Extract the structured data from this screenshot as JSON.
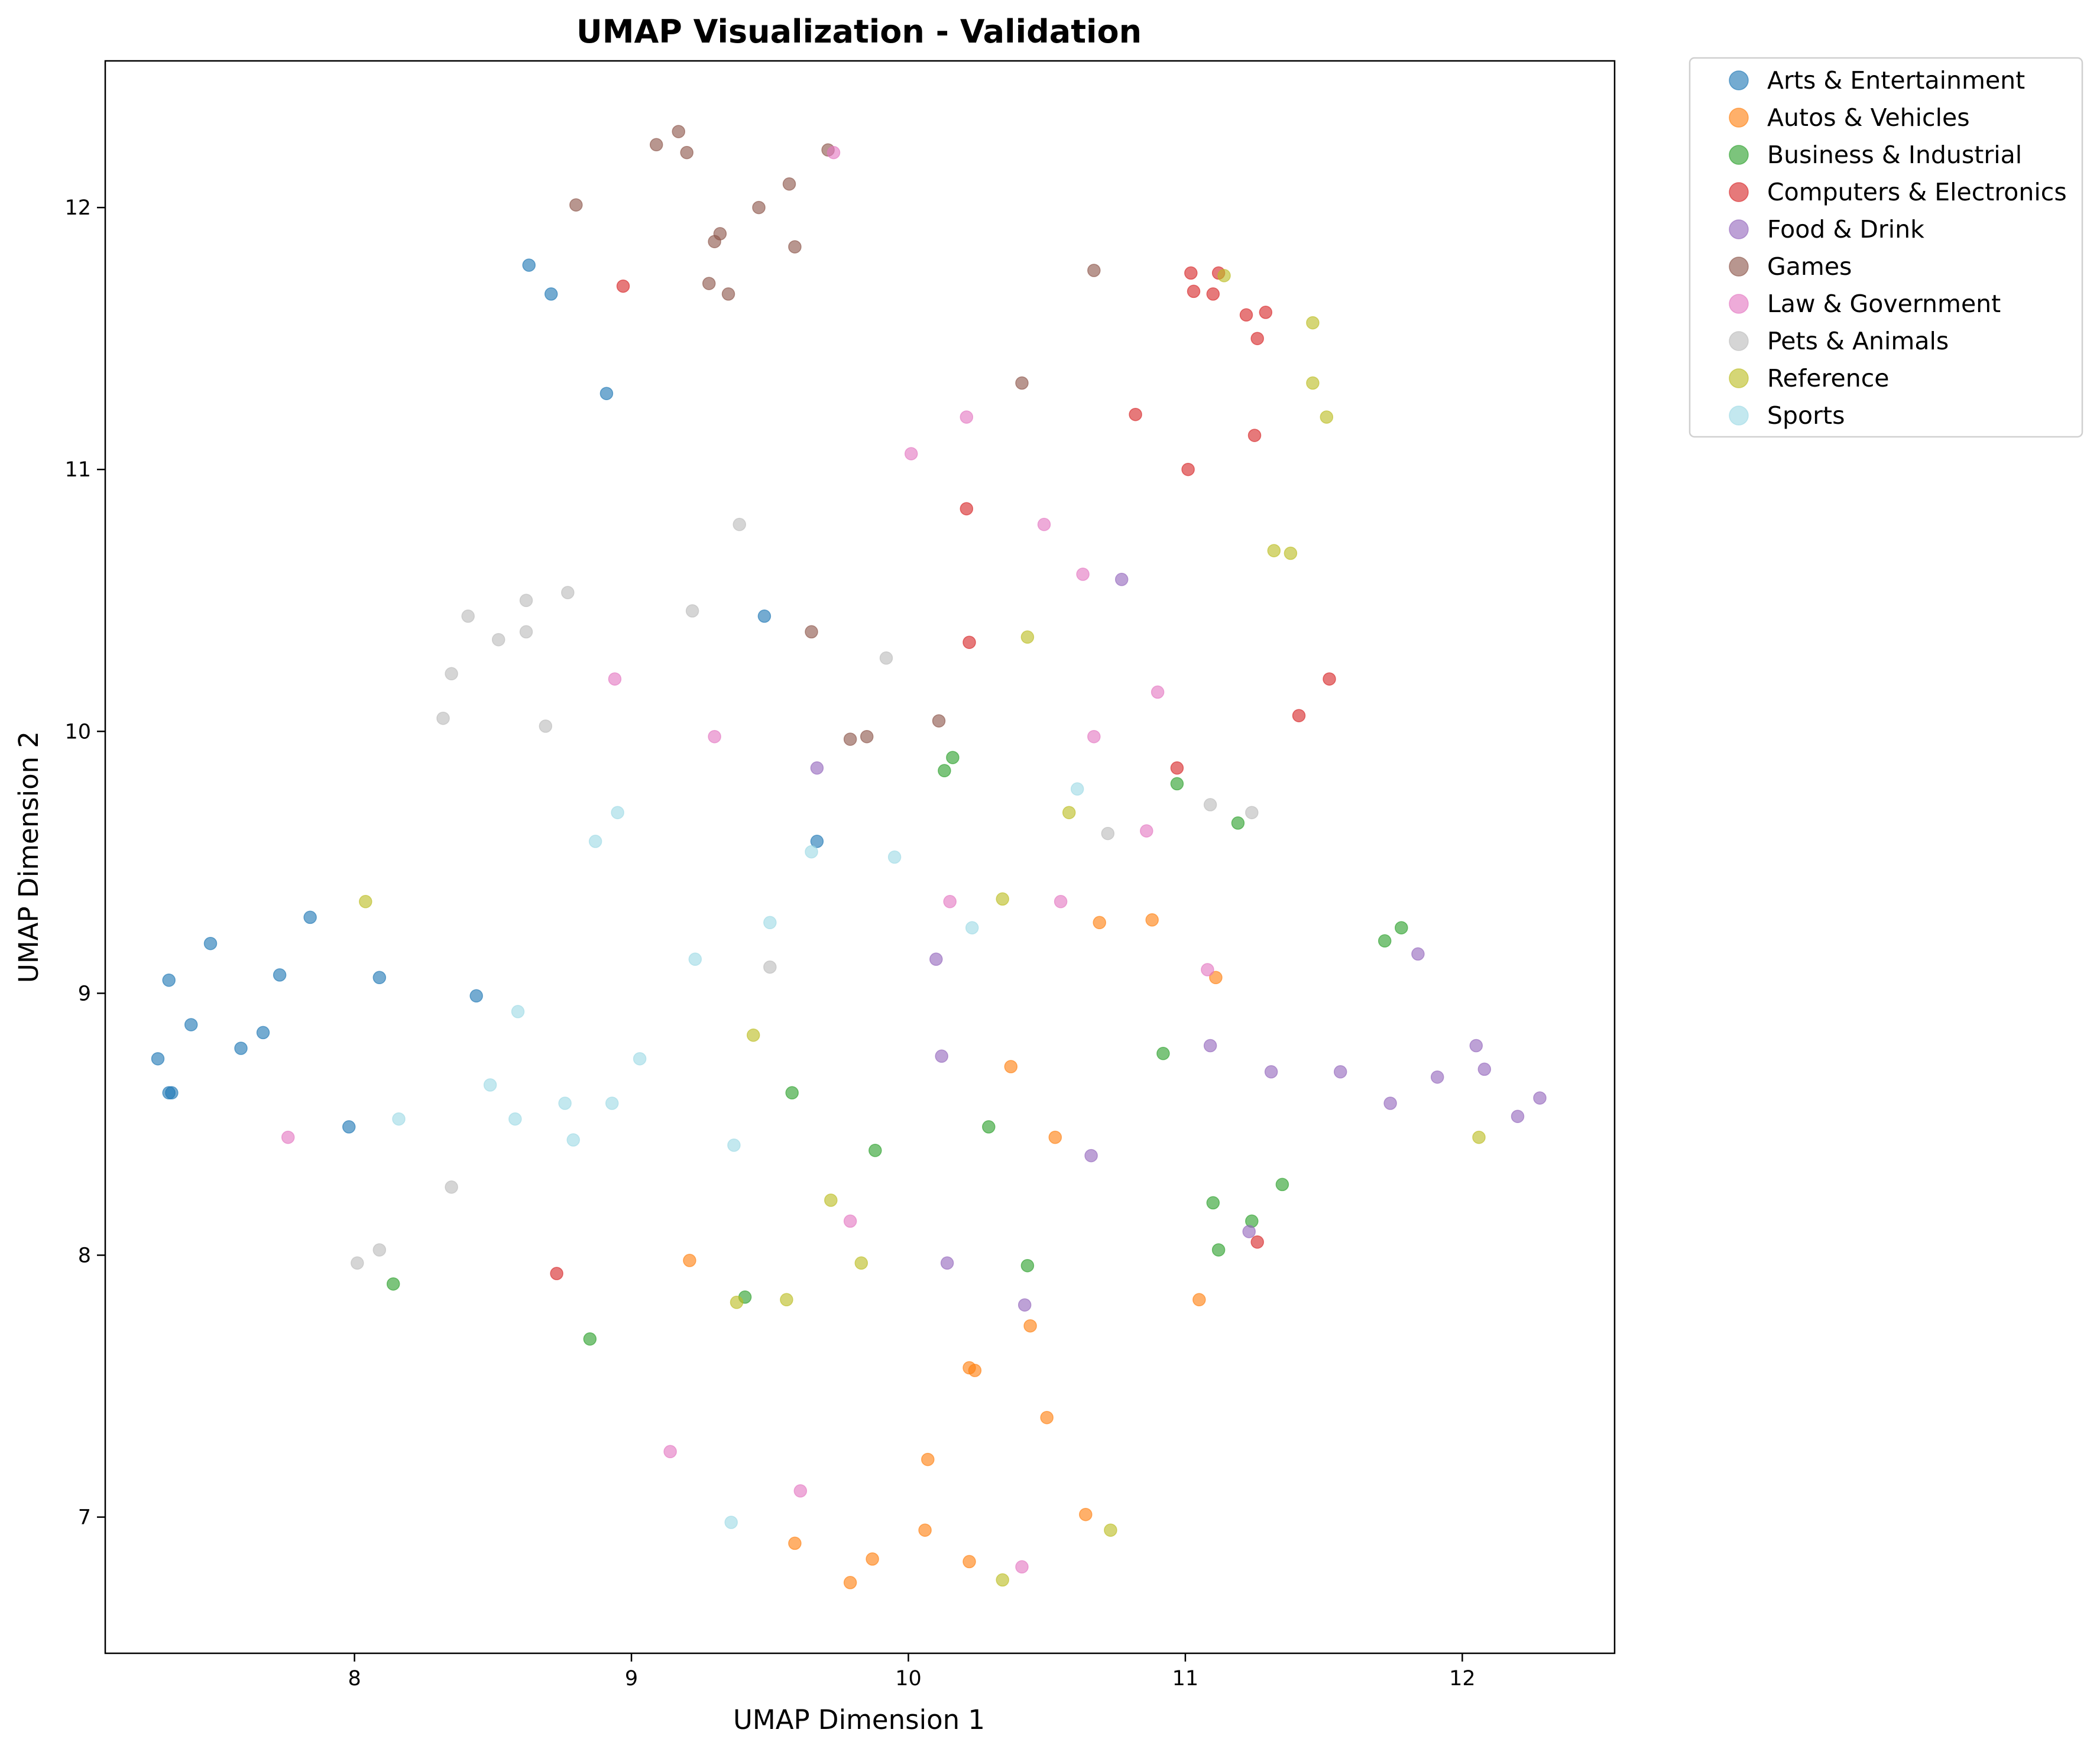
{
  "chart_data": {
    "type": "scatter",
    "title": "UMAP Visualization - Validation",
    "xlabel": "UMAP Dimension 1",
    "ylabel": "UMAP Dimension 2",
    "xlim": [
      7.1,
      12.55
    ],
    "ylim": [
      6.48,
      12.56
    ],
    "xticks": [
      8,
      9,
      10,
      11,
      12
    ],
    "yticks": [
      7,
      8,
      9,
      10,
      11,
      12
    ],
    "grid": false,
    "legend_position": "outside-top-right",
    "series": [
      {
        "name": "Arts & Entertainment",
        "color": "#1f77b4",
        "points": [
          [
            8.63,
            11.78
          ],
          [
            8.71,
            11.67
          ],
          [
            8.91,
            11.29
          ],
          [
            9.48,
            10.44
          ],
          [
            9.67,
            9.58
          ],
          [
            7.84,
            9.29
          ],
          [
            7.48,
            9.19
          ],
          [
            7.33,
            9.05
          ],
          [
            7.73,
            9.07
          ],
          [
            8.09,
            9.06
          ],
          [
            8.44,
            8.99
          ],
          [
            7.41,
            8.88
          ],
          [
            7.67,
            8.85
          ],
          [
            7.59,
            8.79
          ],
          [
            7.29,
            8.75
          ],
          [
            7.33,
            8.62
          ],
          [
            7.34,
            8.62
          ],
          [
            7.98,
            8.49
          ]
        ]
      },
      {
        "name": "Autos & Vehicles",
        "color": "#ff7f0e",
        "points": [
          [
            10.69,
            9.27
          ],
          [
            10.88,
            9.28
          ],
          [
            11.11,
            9.06
          ],
          [
            10.37,
            8.72
          ],
          [
            10.53,
            8.45
          ],
          [
            9.21,
            7.98
          ],
          [
            11.05,
            7.83
          ],
          [
            10.44,
            7.73
          ],
          [
            10.22,
            7.57
          ],
          [
            10.24,
            7.56
          ],
          [
            10.5,
            7.38
          ],
          [
            10.07,
            7.22
          ],
          [
            10.64,
            7.01
          ],
          [
            10.06,
            6.95
          ],
          [
            9.59,
            6.9
          ],
          [
            9.87,
            6.84
          ],
          [
            10.22,
            6.83
          ],
          [
            9.79,
            6.75
          ]
        ]
      },
      {
        "name": "Business & Industrial",
        "color": "#2ca02c",
        "points": [
          [
            10.16,
            9.9
          ],
          [
            10.13,
            9.85
          ],
          [
            10.97,
            9.8
          ],
          [
            11.19,
            9.65
          ],
          [
            11.78,
            9.25
          ],
          [
            11.72,
            9.2
          ],
          [
            10.92,
            8.77
          ],
          [
            9.58,
            8.62
          ],
          [
            10.29,
            8.49
          ],
          [
            9.88,
            8.4
          ],
          [
            11.35,
            8.27
          ],
          [
            11.1,
            8.2
          ],
          [
            11.24,
            8.13
          ],
          [
            11.12,
            8.02
          ],
          [
            10.43,
            7.96
          ],
          [
            9.41,
            7.84
          ],
          [
            8.14,
            7.89
          ],
          [
            8.85,
            7.68
          ]
        ]
      },
      {
        "name": "Computers & Electronics",
        "color": "#d62728",
        "points": [
          [
            8.97,
            11.7
          ],
          [
            11.02,
            11.75
          ],
          [
            11.12,
            11.75
          ],
          [
            11.03,
            11.68
          ],
          [
            11.1,
            11.67
          ],
          [
            11.22,
            11.59
          ],
          [
            11.29,
            11.6
          ],
          [
            11.26,
            11.5
          ],
          [
            10.82,
            11.21
          ],
          [
            11.25,
            11.13
          ],
          [
            11.01,
            11.0
          ],
          [
            10.21,
            10.85
          ],
          [
            10.22,
            10.34
          ],
          [
            11.52,
            10.2
          ],
          [
            11.41,
            10.06
          ],
          [
            10.97,
            9.86
          ],
          [
            11.26,
            8.05
          ],
          [
            8.73,
            7.93
          ]
        ]
      },
      {
        "name": "Food & Drink",
        "color": "#9467bd",
        "points": [
          [
            10.77,
            10.58
          ],
          [
            9.67,
            9.86
          ],
          [
            11.84,
            9.15
          ],
          [
            10.1,
            9.13
          ],
          [
            11.09,
            8.8
          ],
          [
            12.05,
            8.8
          ],
          [
            10.12,
            8.76
          ],
          [
            11.31,
            8.7
          ],
          [
            11.56,
            8.7
          ],
          [
            12.08,
            8.71
          ],
          [
            11.91,
            8.68
          ],
          [
            12.28,
            8.6
          ],
          [
            11.74,
            8.58
          ],
          [
            12.2,
            8.53
          ],
          [
            10.66,
            8.38
          ],
          [
            11.23,
            8.09
          ],
          [
            10.14,
            7.97
          ],
          [
            10.42,
            7.81
          ]
        ]
      },
      {
        "name": "Games",
        "color": "#8c564b",
        "points": [
          [
            9.17,
            12.29
          ],
          [
            9.09,
            12.24
          ],
          [
            9.2,
            12.21
          ],
          [
            9.71,
            12.22
          ],
          [
            9.57,
            12.09
          ],
          [
            8.8,
            12.01
          ],
          [
            9.46,
            12.0
          ],
          [
            9.32,
            11.9
          ],
          [
            9.3,
            11.87
          ],
          [
            9.59,
            11.85
          ],
          [
            10.67,
            11.76
          ],
          [
            9.28,
            11.71
          ],
          [
            9.35,
            11.67
          ],
          [
            10.41,
            11.33
          ],
          [
            9.65,
            10.38
          ],
          [
            10.11,
            10.04
          ],
          [
            9.79,
            9.97
          ],
          [
            9.85,
            9.98
          ]
        ]
      },
      {
        "name": "Law & Government",
        "color": "#e377c2",
        "points": [
          [
            9.73,
            12.21
          ],
          [
            10.21,
            11.2
          ],
          [
            10.01,
            11.06
          ],
          [
            10.49,
            10.79
          ],
          [
            10.63,
            10.6
          ],
          [
            10.9,
            10.15
          ],
          [
            8.94,
            10.2
          ],
          [
            9.3,
            9.98
          ],
          [
            10.67,
            9.98
          ],
          [
            10.86,
            9.62
          ],
          [
            10.15,
            9.35
          ],
          [
            10.55,
            9.35
          ],
          [
            11.08,
            9.09
          ],
          [
            7.76,
            8.45
          ],
          [
            9.79,
            8.13
          ],
          [
            9.14,
            7.25
          ],
          [
            9.61,
            7.1
          ],
          [
            10.41,
            6.81
          ]
        ]
      },
      {
        "name": "Pets & Animals",
        "color": "#bcbcbc",
        "points": [
          [
            9.39,
            10.79
          ],
          [
            8.77,
            10.53
          ],
          [
            8.62,
            10.5
          ],
          [
            8.41,
            10.44
          ],
          [
            9.22,
            10.46
          ],
          [
            8.62,
            10.38
          ],
          [
            8.52,
            10.35
          ],
          [
            9.92,
            10.28
          ],
          [
            8.35,
            10.22
          ],
          [
            8.32,
            10.05
          ],
          [
            8.69,
            10.02
          ],
          [
            11.09,
            9.72
          ],
          [
            11.24,
            9.69
          ],
          [
            10.72,
            9.61
          ],
          [
            9.5,
            9.1
          ],
          [
            8.35,
            8.26
          ],
          [
            8.09,
            8.02
          ],
          [
            8.01,
            7.97
          ]
        ]
      },
      {
        "name": "Reference",
        "color": "#bcbd22",
        "points": [
          [
            11.14,
            11.74
          ],
          [
            11.46,
            11.56
          ],
          [
            11.46,
            11.33
          ],
          [
            11.51,
            11.2
          ],
          [
            11.32,
            10.69
          ],
          [
            11.38,
            10.68
          ],
          [
            10.43,
            10.36
          ],
          [
            10.58,
            9.69
          ],
          [
            8.04,
            9.35
          ],
          [
            10.34,
            9.36
          ],
          [
            9.44,
            8.84
          ],
          [
            12.06,
            8.45
          ],
          [
            9.72,
            8.21
          ],
          [
            9.83,
            7.97
          ],
          [
            9.56,
            7.83
          ],
          [
            9.38,
            7.82
          ],
          [
            10.73,
            6.95
          ],
          [
            10.34,
            6.76
          ]
        ]
      },
      {
        "name": "Sports",
        "color": "#9edae5",
        "points": [
          [
            8.95,
            9.69
          ],
          [
            10.61,
            9.78
          ],
          [
            8.87,
            9.58
          ],
          [
            9.65,
            9.54
          ],
          [
            9.95,
            9.52
          ],
          [
            9.5,
            9.27
          ],
          [
            10.23,
            9.25
          ],
          [
            9.23,
            9.13
          ],
          [
            8.59,
            8.93
          ],
          [
            9.03,
            8.75
          ],
          [
            8.49,
            8.65
          ],
          [
            8.76,
            8.58
          ],
          [
            8.93,
            8.58
          ],
          [
            8.16,
            8.52
          ],
          [
            8.58,
            8.52
          ],
          [
            8.79,
            8.44
          ],
          [
            9.37,
            8.42
          ],
          [
            9.36,
            6.98
          ]
        ]
      }
    ]
  }
}
